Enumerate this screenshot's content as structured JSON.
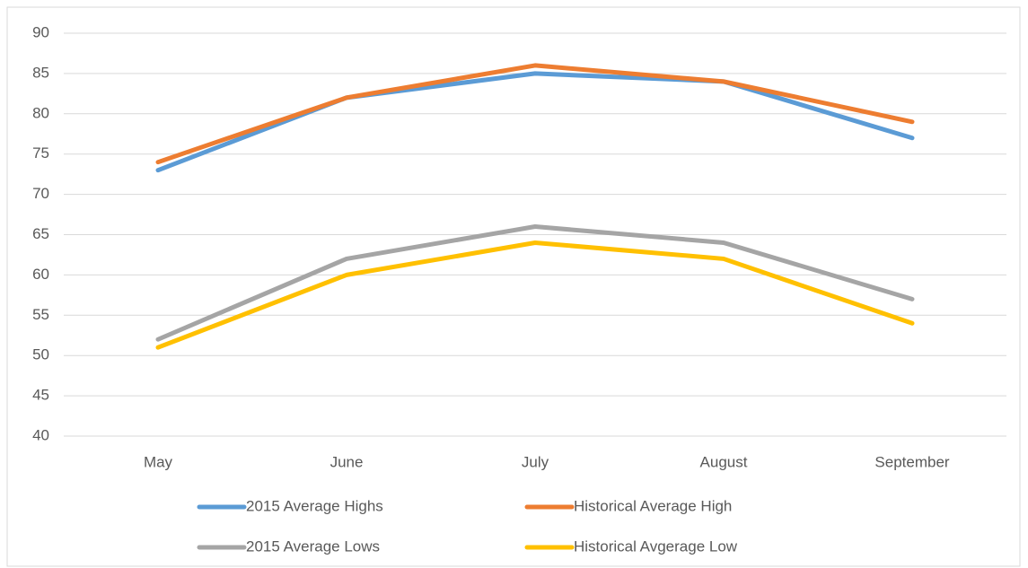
{
  "chart_data": {
    "type": "line",
    "categories": [
      "May",
      "June",
      "July",
      "August",
      "September"
    ],
    "series": [
      {
        "name": "2015 Average Highs",
        "color": "#5b9bd5",
        "values": [
          73,
          82,
          85,
          84,
          77
        ]
      },
      {
        "name": "Historical Average High",
        "color": "#ed7d31",
        "values": [
          74,
          82,
          86,
          84,
          79
        ]
      },
      {
        "name": "2015 Average Lows",
        "color": "#a5a5a5",
        "values": [
          52,
          62,
          66,
          64,
          57
        ]
      },
      {
        "name": "Historical Avgerage Low",
        "color": "#ffc000",
        "values": [
          51,
          60,
          64,
          62,
          54
        ]
      }
    ],
    "ylim": [
      40,
      90
    ],
    "yticks": [
      40,
      45,
      50,
      55,
      60,
      65,
      70,
      75,
      80,
      85,
      90
    ],
    "grid": true,
    "legend": "bottom"
  }
}
